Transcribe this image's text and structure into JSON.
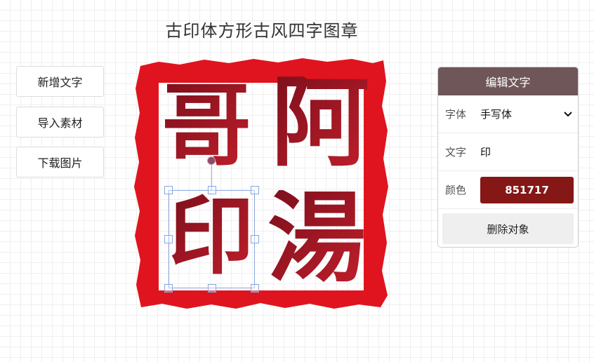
{
  "page": {
    "title": "古印体方形古风四字图章"
  },
  "toolbar": {
    "add_text": "新增文字",
    "import_material": "导入素材",
    "download_image": "下载图片"
  },
  "seal": {
    "border_color": "#e0141e",
    "glyphs": [
      "哥",
      "印",
      "阿",
      "湯"
    ],
    "text_color": "#851717"
  },
  "panel": {
    "header": "编辑文字",
    "font_label": "字体",
    "font_value": "手写体",
    "text_label": "文字",
    "text_value": "印",
    "color_label": "颜色",
    "color_value": "851717",
    "delete": "删除对象"
  },
  "icons": {
    "dropdown": "chevron-down-icon"
  }
}
